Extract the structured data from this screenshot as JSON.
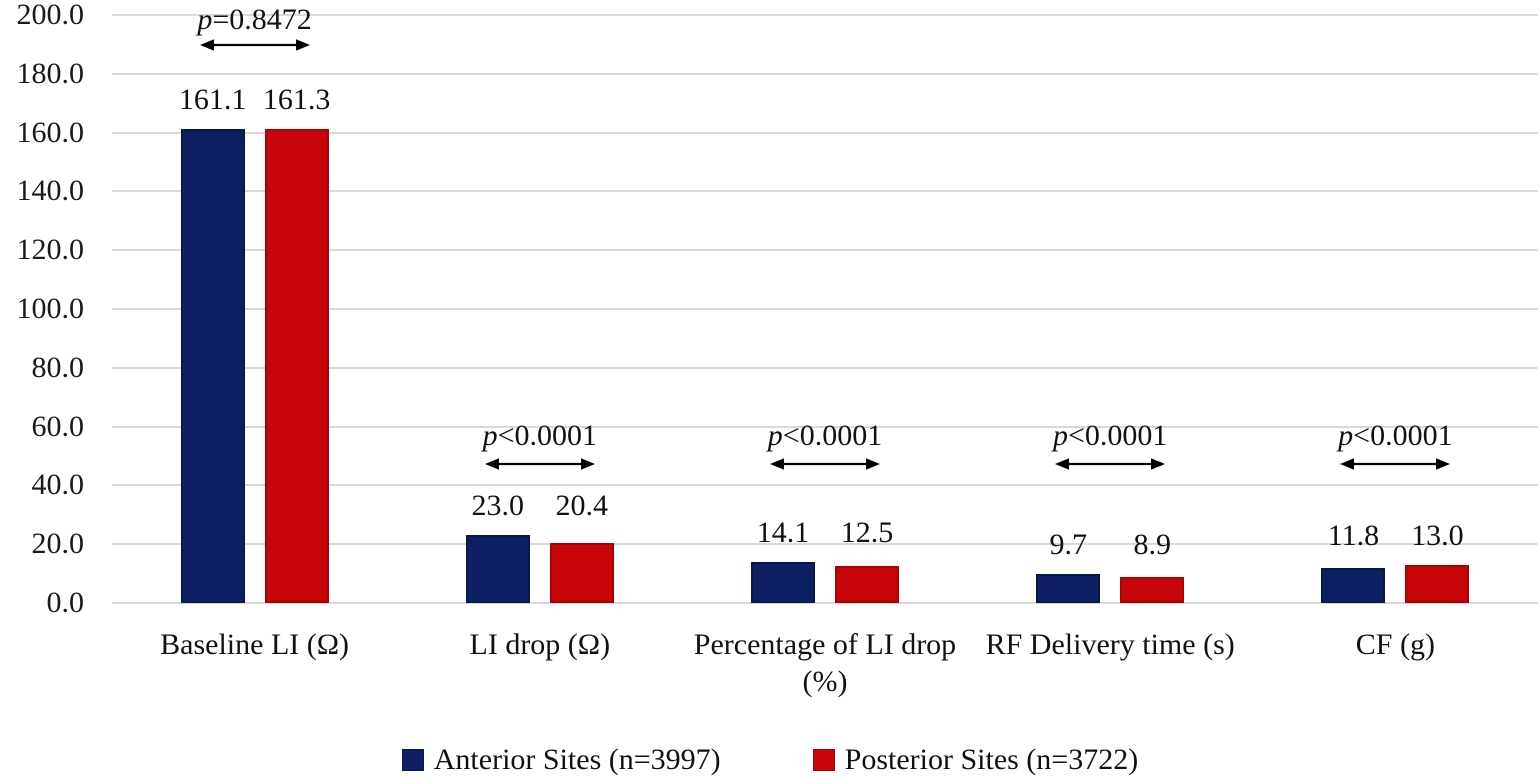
{
  "chart_data": {
    "type": "bar",
    "title": "",
    "xlabel": "",
    "ylabel": "",
    "categories": [
      "Baseline LI (Ω)",
      "LI drop (Ω)",
      "Percentage of LI drop (%)",
      "RF Delivery time (s)",
      "CF (g)"
    ],
    "series": [
      {
        "name": "Anterior Sites (n=3997)",
        "color": "#0c2063",
        "values": [
          161.1,
          23.0,
          14.1,
          9.7,
          11.8
        ]
      },
      {
        "name": "Posterior Sites (n=3722)",
        "color": "#c70408",
        "values": [
          161.3,
          20.4,
          12.5,
          8.9,
          13.0
        ]
      }
    ],
    "p_values": [
      "p=0.8472",
      "p<0.0001",
      "p<0.0001",
      "p<0.0001",
      "p<0.0001"
    ],
    "y_axis": {
      "min": 0,
      "max": 200,
      "step": 20,
      "tick_labels": [
        "0.0",
        "20.0",
        "40.0",
        "60.0",
        "80.0",
        "100.0",
        "120.0",
        "140.0",
        "160.0",
        "180.0",
        "200.0"
      ]
    },
    "grid": true,
    "gridline_color": "#d9d9d9",
    "legend_position": "bottom"
  }
}
